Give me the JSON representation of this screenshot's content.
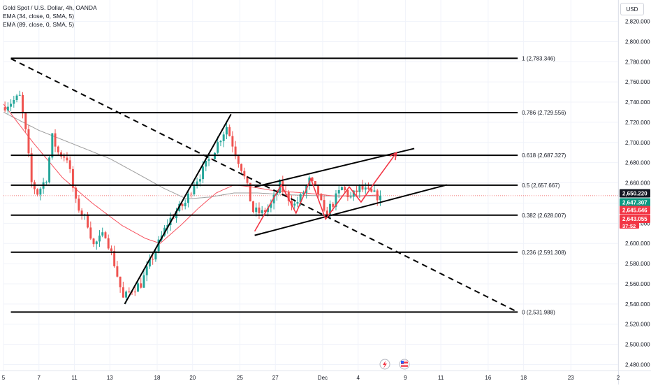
{
  "legend": {
    "title": "Gold Spot / U.S. Dollar, 4h, OANDA",
    "ema1": "EMA (34, close, 0, SMA, 5)",
    "ema2": "EMA (89, close, 0, SMA, 5)"
  },
  "currency_button": "USD",
  "colors": {
    "up": "#26a69a",
    "down": "#ef5350",
    "arrow": "#f23645",
    "ema_fast": "#f7525f",
    "ema_slow": "#9e9e9e",
    "fib_line": "#000000",
    "price_last_green": "#089981",
    "price_red": "#f23645",
    "price_dark": "#131722"
  },
  "price_labels": [
    {
      "label": "2,650.220",
      "value": 2650.22,
      "style": "dark"
    },
    {
      "label": "2,647.307",
      "value": 2647.307,
      "style": "green"
    },
    {
      "label": "2,645.646",
      "value": 2645.646,
      "style": "red"
    },
    {
      "label": "2,643.055",
      "value": 2643.055,
      "style": "red"
    },
    {
      "label": "37:52",
      "value": 2637.5,
      "style": "red-small"
    }
  ],
  "chart_data": {
    "type": "candlestick",
    "title": "Gold Spot / U.S. Dollar, 4h, OANDA",
    "ylim": [
      2475,
      2838
    ],
    "y_ticks": [
      {
        "value": 2820,
        "label": "2,820.000"
      },
      {
        "value": 2800,
        "label": "2,800.000"
      },
      {
        "value": 2780,
        "label": "2,780.000"
      },
      {
        "value": 2760,
        "label": "2,760.000"
      },
      {
        "value": 2740,
        "label": "2,740.000"
      },
      {
        "value": 2720,
        "label": "2,720.000"
      },
      {
        "value": 2700,
        "label": "2,700.000"
      },
      {
        "value": 2680,
        "label": "2,680.000"
      },
      {
        "value": 2660,
        "label": "2,660.000"
      },
      {
        "value": 2640,
        "label": "2,640.000"
      },
      {
        "value": 2620,
        "label": "2,620.000"
      },
      {
        "value": 2600,
        "label": "2,600.000"
      },
      {
        "value": 2580,
        "label": "2,580.000"
      },
      {
        "value": 2560,
        "label": "2,560.000"
      },
      {
        "value": 2540,
        "label": "2,540.000"
      },
      {
        "value": 2520,
        "label": "2,520.000"
      },
      {
        "value": 2500,
        "label": "2,500.000"
      },
      {
        "value": 2480,
        "label": "2,480.000"
      }
    ],
    "x_ticks": [
      "5",
      "7",
      "11",
      "13",
      "18",
      "20",
      "25",
      "27",
      "Dec",
      "4",
      "9",
      "11",
      "16",
      "18",
      "23",
      "2"
    ],
    "x_tick_bars": [
      0,
      12,
      24,
      36,
      52,
      64,
      80,
      92,
      108,
      120,
      136,
      148,
      164,
      176,
      192,
      208
    ],
    "x_max_bar": 208,
    "fib_levels": [
      {
        "ratio": "1",
        "price": 2783.346,
        "label": "1 (2,783.346)"
      },
      {
        "ratio": "0.786",
        "price": 2729.556,
        "label": "0.786 (2,729.556)"
      },
      {
        "ratio": "0.618",
        "price": 2687.327,
        "label": "0.618 (2,687.327)"
      },
      {
        "ratio": "0.5",
        "price": 2657.667,
        "label": "0.5 (2,657.667)"
      },
      {
        "ratio": "0.382",
        "price": 2628.007,
        "label": "0.382 (2,628.007)"
      },
      {
        "ratio": "0.236",
        "price": 2591.308,
        "label": "0.236 (2,591.308)"
      },
      {
        "ratio": "0",
        "price": 2531.988,
        "label": "0 (2,531.988)"
      }
    ],
    "fib_x_range": [
      2.5,
      174
    ],
    "dashed_trendline": [
      [
        2.5,
        2783
      ],
      [
        174,
        2532
      ]
    ],
    "up_trendline": [
      [
        41,
        2540
      ],
      [
        77,
        2728
      ]
    ],
    "channel_upper": [
      [
        85,
        2656
      ],
      [
        139,
        2694
      ]
    ],
    "channel_lower": [
      [
        85,
        2608
      ],
      [
        150,
        2658
      ]
    ],
    "projection_zigzag": [
      [
        85,
        2612
      ],
      [
        94,
        2658
      ],
      [
        99,
        2630
      ],
      [
        104,
        2664
      ],
      [
        109,
        2624
      ],
      [
        117,
        2656
      ],
      [
        121,
        2641
      ],
      [
        126,
        2662
      ],
      [
        133,
        2690
      ]
    ],
    "last_bar": 127,
    "last_close": 2647.307,
    "ema_fast_anchors": [
      [
        0,
        2738
      ],
      [
        10,
        2700
      ],
      [
        20,
        2665
      ],
      [
        30,
        2640
      ],
      [
        40,
        2618
      ],
      [
        48,
        2605
      ],
      [
        53,
        2600
      ],
      [
        60,
        2618
      ],
      [
        66,
        2635
      ],
      [
        72,
        2650
      ],
      [
        78,
        2658
      ],
      [
        84,
        2656
      ],
      [
        92,
        2652
      ],
      [
        102,
        2650
      ],
      [
        112,
        2647
      ],
      [
        120,
        2647
      ],
      [
        127,
        2648
      ]
    ],
    "ema_slow_anchors": [
      [
        0,
        2730
      ],
      [
        12,
        2712
      ],
      [
        24,
        2698
      ],
      [
        36,
        2684
      ],
      [
        46,
        2668
      ],
      [
        54,
        2655
      ],
      [
        62,
        2644
      ],
      [
        70,
        2646
      ],
      [
        78,
        2650
      ],
      [
        86,
        2650
      ],
      [
        98,
        2648
      ],
      [
        110,
        2647
      ],
      [
        127,
        2647
      ]
    ],
    "price_anchors": [
      [
        0,
        2735
      ],
      [
        6,
        2745
      ],
      [
        8,
        2710
      ],
      [
        10,
        2660
      ],
      [
        12,
        2650
      ],
      [
        15,
        2665
      ],
      [
        17,
        2705
      ],
      [
        19,
        2690
      ],
      [
        22,
        2685
      ],
      [
        25,
        2640
      ],
      [
        29,
        2620
      ],
      [
        31,
        2598
      ],
      [
        35,
        2610
      ],
      [
        38,
        2580
      ],
      [
        41,
        2545
      ],
      [
        44,
        2555
      ],
      [
        47,
        2560
      ],
      [
        50,
        2580
      ],
      [
        53,
        2600
      ],
      [
        56,
        2620
      ],
      [
        59,
        2632
      ],
      [
        62,
        2640
      ],
      [
        65,
        2660
      ],
      [
        68,
        2672
      ],
      [
        71,
        2688
      ],
      [
        74,
        2705
      ],
      [
        76,
        2716
      ],
      [
        79,
        2690
      ],
      [
        81,
        2675
      ],
      [
        83,
        2655
      ],
      [
        85,
        2632
      ],
      [
        88,
        2630
      ],
      [
        91,
        2638
      ],
      [
        94,
        2657
      ],
      [
        97,
        2645
      ],
      [
        99,
        2638
      ],
      [
        101,
        2645
      ],
      [
        104,
        2662
      ],
      [
        107,
        2650
      ],
      [
        109,
        2628
      ],
      [
        112,
        2640
      ],
      [
        115,
        2655
      ],
      [
        118,
        2645
      ],
      [
        121,
        2655
      ],
      [
        124,
        2650
      ],
      [
        127,
        2647
      ]
    ]
  }
}
